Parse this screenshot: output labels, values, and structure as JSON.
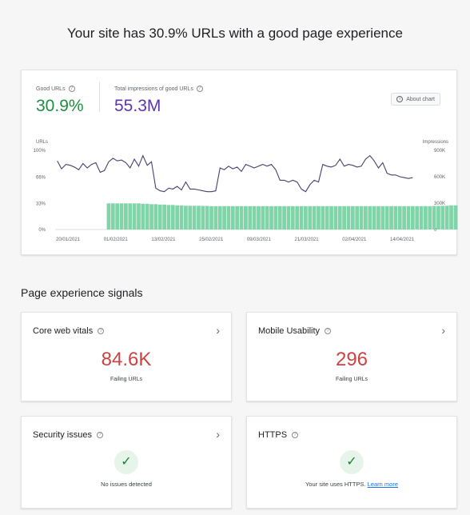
{
  "headline": "Your site has 30.9% URLs with a good page experience",
  "summary": {
    "good_urls_label": "Good URLs",
    "good_urls_value": "30.9%",
    "impressions_label": "Total impressions of good URLs",
    "impressions_value": "55.3M",
    "about_chart_label": "About chart",
    "colors": {
      "good": "#1e8e3e",
      "impressions": "#5e35b1",
      "bars": "#81d4a8"
    }
  },
  "chart_data": {
    "type": "bar+line",
    "left_axis_title": "URLs",
    "right_axis_title": "Impressions",
    "left_ticks": [
      "100%",
      "66%",
      "33%",
      "0%"
    ],
    "left_tick_values": [
      100,
      66,
      33,
      0
    ],
    "right_ticks": [
      "900K",
      "600K",
      "300K",
      "0"
    ],
    "right_tick_values": [
      900000,
      600000,
      300000,
      0
    ],
    "x_ticks": [
      "20/01/2021",
      "01/02/2021",
      "13/02/2021",
      "25/02/2021",
      "09/03/2021",
      "21/03/2021",
      "02/04/2021",
      "14/04/2021"
    ],
    "ylim_left": [
      0,
      100
    ],
    "ylim_right": [
      0,
      900000
    ],
    "series": [
      {
        "name": "Good URLs",
        "kind": "bar",
        "start_index": 12,
        "values": [
          33,
          33,
          33,
          33,
          33,
          33,
          33,
          33,
          32.5,
          32.5,
          32,
          32,
          31.5,
          31.5,
          31,
          31,
          30.5,
          30.5,
          30,
          30,
          30,
          30,
          29.8,
          29.8,
          29.5,
          29.5,
          29.5,
          29.5,
          29.5,
          29.5,
          29.5,
          29.5,
          29.5,
          29.5,
          29.5,
          29.5,
          29.5,
          29.5,
          29.5,
          29.5,
          29.5,
          29.5,
          29.5,
          29.5,
          29.5,
          29.5,
          29.5,
          29.5,
          29.5,
          29.5,
          29.5,
          29.5,
          29.5,
          29.5,
          29.5,
          29.5,
          29.5,
          29.5,
          29.5,
          29.5,
          29.5,
          29.5,
          29.5,
          29.5,
          29.5,
          29.5,
          29.5,
          29.5,
          29.5,
          29.5,
          29.5,
          29.5,
          29.5,
          29.5,
          29.5,
          29.5,
          29.8,
          29.8,
          30,
          30,
          30.5,
          30.5,
          31,
          31,
          31.5,
          31.5,
          32,
          32
        ]
      },
      {
        "name": "Impressions",
        "kind": "line",
        "values": [
          780000,
          690000,
          740000,
          730000,
          710000,
          680000,
          750000,
          700000,
          740000,
          760000,
          650000,
          670000,
          770000,
          810000,
          780000,
          790000,
          760000,
          700000,
          800000,
          720000,
          840000,
          730000,
          770000,
          470000,
          440000,
          430000,
          470000,
          460000,
          490000,
          450000,
          540000,
          460000,
          460000,
          450000,
          440000,
          430000,
          430000,
          440000,
          700000,
          680000,
          720000,
          690000,
          710000,
          660000,
          740000,
          720000,
          700000,
          720000,
          740000,
          720000,
          740000,
          680000,
          560000,
          560000,
          540000,
          560000,
          540000,
          460000,
          430000,
          510000,
          560000,
          540000,
          740000,
          720000,
          710000,
          730000,
          800000,
          720000,
          740000,
          730000,
          710000,
          720000,
          800000,
          840000,
          780000,
          700000,
          760000,
          640000,
          620000,
          620000,
          600000,
          590000,
          580000,
          590000
        ]
      }
    ],
    "grid": false,
    "legend": "none"
  },
  "section_title": "Page experience signals",
  "signals": {
    "core_web_vitals": {
      "title": "Core web vitals",
      "value": "84.6K",
      "sub": "Failing URLs"
    },
    "mobile_usability": {
      "title": "Mobile Usability",
      "value": "296",
      "sub": "Failing URLs"
    },
    "security": {
      "title": "Security issues",
      "message": "No issues detected"
    },
    "https": {
      "title": "HTTPS",
      "message": "Your site uses HTTPS.",
      "link": "Learn more"
    }
  },
  "icons": {
    "help": "help-circle-icon",
    "info": "info-icon",
    "chevron": "chevron-right-icon",
    "check": "check-icon"
  }
}
